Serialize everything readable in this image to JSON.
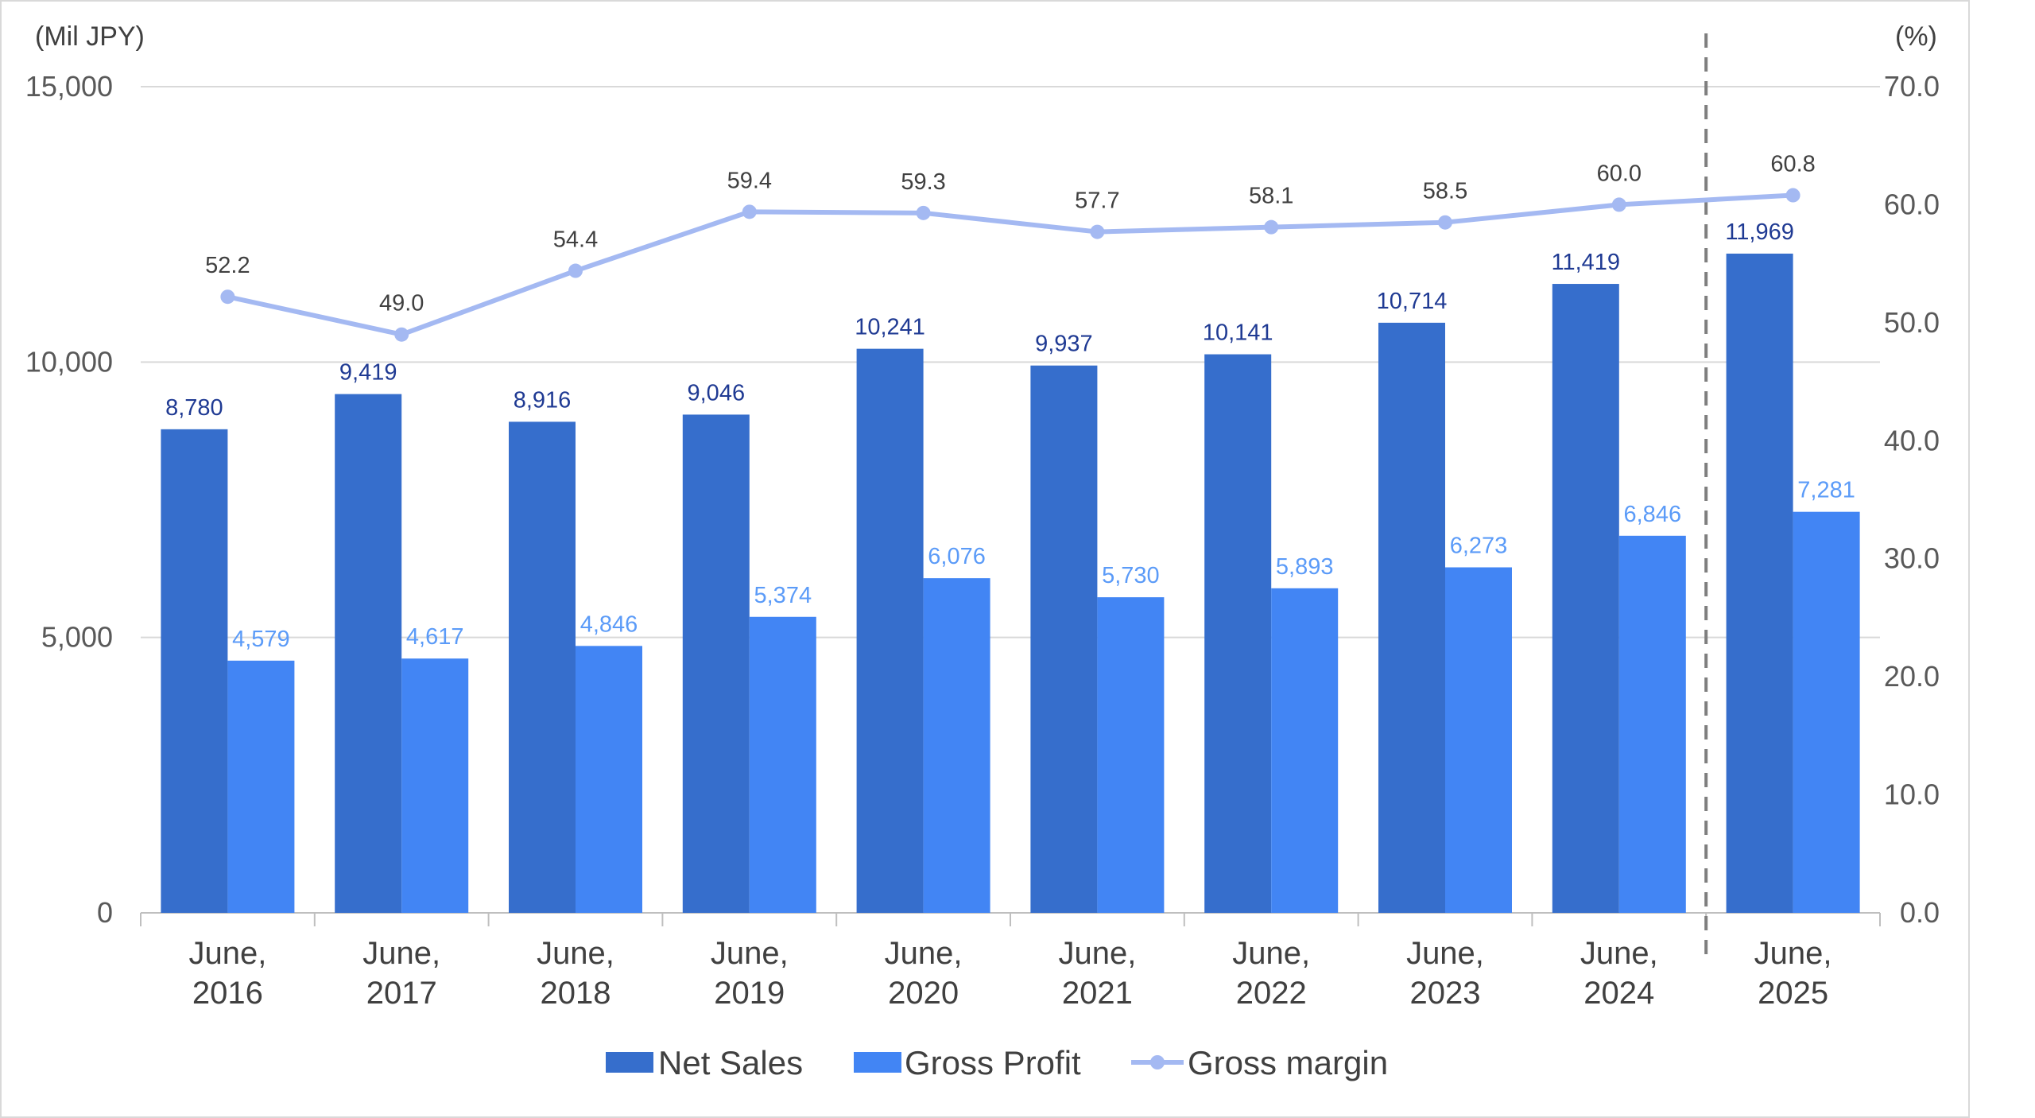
{
  "chart_data": {
    "type": "bar",
    "categories": [
      [
        "June,",
        "2016"
      ],
      [
        "June,",
        "2017"
      ],
      [
        "June,",
        "2018"
      ],
      [
        "June,",
        "2019"
      ],
      [
        "June,",
        "2020"
      ],
      [
        "June,",
        "2021"
      ],
      [
        "June,",
        "2022"
      ],
      [
        "June,",
        "2023"
      ],
      [
        "June,",
        "2024"
      ],
      [
        "June,",
        "2025"
      ]
    ],
    "series": [
      {
        "name": "Net Sales",
        "axis": "left",
        "kind": "bar",
        "color": "#366ecc",
        "values": [
          8780,
          9419,
          8916,
          9046,
          10241,
          9937,
          10141,
          10714,
          11419,
          11969
        ],
        "labels": [
          "8,780",
          "9,419",
          "8,916",
          "9,046",
          "10,241",
          "9,937",
          "10,141",
          "10,714",
          "11,419",
          "11,969"
        ]
      },
      {
        "name": "Gross Profit",
        "axis": "left",
        "kind": "bar",
        "color": "#4285f4",
        "values": [
          4579,
          4617,
          4846,
          5374,
          6076,
          5730,
          5893,
          6273,
          6846,
          7281
        ],
        "labels": [
          "4,579",
          "4,617",
          "4,846",
          "5,374",
          "6,076",
          "5,730",
          "5,893",
          "6,273",
          "6,846",
          "7,281"
        ]
      },
      {
        "name": "Gross margin",
        "axis": "right",
        "kind": "line",
        "color": "#a4b9f2",
        "values": [
          52.2,
          49.0,
          54.4,
          59.4,
          59.3,
          57.7,
          58.1,
          58.5,
          60.0,
          60.8
        ],
        "labels": [
          "52.2",
          "49.0",
          "54.4",
          "59.4",
          "59.3",
          "57.7",
          "58.1",
          "58.5",
          "60.0",
          "60.8"
        ]
      }
    ],
    "y_left": {
      "unit_label": "(Mil JPY)",
      "min": 0,
      "max": 15000,
      "ticks": [
        0,
        5000,
        10000,
        15000
      ],
      "tick_labels": [
        "0",
        "5,000",
        "10,000",
        "15,000"
      ]
    },
    "y_right": {
      "unit_label": "(%)",
      "min": 0,
      "max": 70,
      "ticks": [
        0,
        10,
        20,
        30,
        40,
        50,
        60,
        70
      ],
      "tick_labels": [
        "0.0",
        "10.0",
        "20.0",
        "30.0",
        "40.0",
        "50.0",
        "60.0",
        "70.0"
      ]
    },
    "grid": true,
    "divider_after_category": 8,
    "legend": {
      "position": "bottom",
      "entries": [
        "Net Sales",
        "Gross Profit",
        "Gross margin"
      ]
    }
  }
}
